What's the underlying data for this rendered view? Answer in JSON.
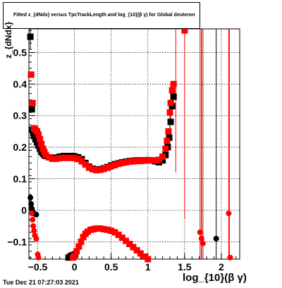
{
  "title": "Fitted  z_{dNdx} versus TpcTrackLength and log_{10}(β γ) for Global deuteron",
  "timestamp": "Tue Dec 21 07:27:03 2021",
  "xlabel": "log_{10}(β γ)",
  "ylabel": "z_{dNdx}",
  "colors": {
    "black": "#000000",
    "red": "#ff0000"
  },
  "chart_data": {
    "type": "scatter",
    "title": "Fitted  z_{dNdx} versus TpcTrackLength and log_{10}(β γ) for Global deuteron",
    "xlabel": "log_{10}(β γ)",
    "ylabel": "z_{dNdx}",
    "xlim": [
      -0.62,
      2.25
    ],
    "ylim": [
      -0.155,
      0.575
    ],
    "grid": true,
    "x_ticks": [
      -0.5,
      0,
      0.5,
      1,
      1.5,
      2
    ],
    "x_tick_labels": [
      "−0.5",
      "0",
      "0.5",
      "1",
      "1.5",
      "2"
    ],
    "y_ticks": [
      -0.1,
      0,
      0.1,
      0.2,
      0.3,
      0.4,
      0.5
    ],
    "y_tick_labels": [
      "−0.1",
      "0",
      "0.1",
      "0.2",
      "0.3",
      "0.4",
      "0.5"
    ],
    "series": [
      {
        "color": "#000000",
        "marker": "square",
        "points": [
          [
            -0.6,
            0.55
          ],
          [
            -0.59,
            0.43
          ],
          [
            -0.58,
            0.32
          ],
          [
            -0.575,
            0.255
          ],
          [
            -0.56,
            0.245
          ],
          [
            -0.55,
            0.235
          ],
          [
            -0.53,
            0.225
          ],
          [
            -0.51,
            0.215
          ],
          [
            -0.49,
            0.205
          ],
          [
            -0.47,
            0.195
          ],
          [
            -0.45,
            0.185
          ],
          [
            -0.43,
            0.18
          ],
          [
            -0.41,
            0.175
          ],
          [
            -0.39,
            0.172
          ],
          [
            -0.35,
            0.168
          ],
          [
            -0.3,
            0.166
          ],
          [
            -0.25,
            0.167
          ],
          [
            -0.2,
            0.17
          ],
          [
            -0.15,
            0.172
          ],
          [
            -0.1,
            0.172
          ],
          [
            -0.05,
            0.172
          ],
          [
            0,
            0.171
          ],
          [
            0.05,
            0.168
          ],
          [
            0.1,
            0.162
          ],
          [
            0.15,
            0.15
          ],
          [
            0.2,
            0.138
          ],
          [
            0.25,
            0.132
          ],
          [
            0.3,
            0.129
          ],
          [
            0.35,
            0.13
          ],
          [
            0.4,
            0.133
          ],
          [
            0.45,
            0.137
          ],
          [
            0.5,
            0.142
          ],
          [
            0.55,
            0.146
          ],
          [
            0.6,
            0.149
          ],
          [
            0.65,
            0.152
          ],
          [
            0.7,
            0.154
          ],
          [
            0.75,
            0.156
          ],
          [
            0.8,
            0.157
          ],
          [
            0.85,
            0.158
          ],
          [
            0.9,
            0.158
          ],
          [
            0.95,
            0.158
          ],
          [
            1.0,
            0.159
          ],
          [
            1.05,
            0.158
          ],
          [
            1.1,
            0.155
          ],
          [
            1.15,
            0.152
          ],
          [
            1.2,
            0.158
          ],
          [
            1.24,
            0.175
          ],
          [
            1.27,
            0.2
          ],
          [
            1.29,
            0.23
          ],
          [
            1.31,
            0.28
          ],
          [
            1.33,
            0.33
          ],
          [
            1.35,
            0.36
          ]
        ]
      },
      {
        "color": "#000000",
        "marker": "circle",
        "points": [
          [
            -0.6,
            0.04
          ],
          [
            -0.59,
            0.02
          ],
          [
            -0.58,
            0.005
          ],
          [
            -0.57,
            -0.005
          ],
          [
            -0.56,
            -0.01
          ],
          [
            -0.54,
            -0.012
          ],
          [
            -0.52,
            -0.014
          ],
          [
            1.93,
            -0.09
          ]
        ]
      },
      {
        "color": "#000000",
        "marker": "square",
        "points": [
          [
            -0.08,
            -0.15
          ],
          [
            -0.05,
            -0.145
          ],
          [
            -0.02,
            -0.142
          ],
          [
            0.01,
            -0.14
          ]
        ]
      },
      {
        "color": "#ff0000",
        "marker": "square",
        "points": [
          [
            -0.59,
            0.43
          ],
          [
            -0.57,
            0.34
          ],
          [
            -0.55,
            0.26
          ],
          [
            -0.53,
            0.255
          ],
          [
            -0.51,
            0.25
          ],
          [
            -0.49,
            0.24
          ],
          [
            -0.47,
            0.225
          ],
          [
            -0.45,
            0.21
          ],
          [
            -0.43,
            0.195
          ],
          [
            -0.41,
            0.185
          ],
          [
            -0.39,
            0.175
          ],
          [
            -0.35,
            0.168
          ],
          [
            -0.3,
            0.163
          ],
          [
            -0.25,
            0.163
          ],
          [
            -0.2,
            0.165
          ],
          [
            -0.15,
            0.166
          ],
          [
            -0.1,
            0.166
          ],
          [
            -0.05,
            0.166
          ],
          [
            0,
            0.165
          ],
          [
            0.05,
            0.162
          ],
          [
            0.1,
            0.155
          ],
          [
            0.15,
            0.145
          ],
          [
            0.2,
            0.135
          ],
          [
            0.25,
            0.13
          ],
          [
            0.3,
            0.127
          ],
          [
            0.35,
            0.128
          ],
          [
            0.4,
            0.131
          ],
          [
            0.45,
            0.135
          ],
          [
            0.5,
            0.139
          ],
          [
            0.55,
            0.143
          ],
          [
            0.6,
            0.147
          ],
          [
            0.65,
            0.15
          ],
          [
            0.7,
            0.152
          ],
          [
            0.75,
            0.154
          ],
          [
            0.8,
            0.155
          ],
          [
            0.85,
            0.156
          ],
          [
            0.9,
            0.156
          ],
          [
            0.95,
            0.157
          ],
          [
            1.0,
            0.158
          ],
          [
            1.05,
            0.158
          ],
          [
            1.1,
            0.158
          ],
          [
            1.15,
            0.16
          ],
          [
            1.2,
            0.17
          ],
          [
            1.24,
            0.195
          ],
          [
            1.26,
            0.22
          ],
          [
            1.28,
            0.25
          ],
          [
            1.3,
            0.31
          ],
          [
            1.31,
            0.34
          ],
          [
            1.33,
            0.38
          ],
          [
            1.35,
            0.4
          ],
          [
            1.5,
            0.57
          ]
        ]
      },
      {
        "color": "#ff0000",
        "marker": "circle",
        "points": [
          [
            -0.58,
            -0.01
          ],
          [
            -0.57,
            -0.03
          ],
          [
            -0.56,
            -0.05
          ],
          [
            -0.55,
            -0.065
          ],
          [
            -0.54,
            -0.08
          ],
          [
            -0.52,
            -0.09
          ],
          [
            -0.5,
            -0.14
          ],
          [
            -0.49,
            -0.15
          ],
          [
            1.71,
            -0.07
          ],
          [
            1.73,
            -0.09
          ],
          [
            1.75,
            -0.105
          ],
          [
            2.1,
            -0.01
          ],
          [
            2.12,
            -0.15
          ]
        ]
      },
      {
        "color": "#ff0000",
        "marker": "square",
        "points": [
          [
            -0.02,
            -0.15
          ],
          [
            0,
            -0.145
          ],
          [
            0.03,
            -0.13
          ],
          [
            0.06,
            -0.115
          ],
          [
            0.09,
            -0.1
          ],
          [
            0.12,
            -0.085
          ],
          [
            0.15,
            -0.075
          ],
          [
            0.18,
            -0.068
          ],
          [
            0.22,
            -0.062
          ],
          [
            0.26,
            -0.06
          ],
          [
            0.3,
            -0.058
          ],
          [
            0.35,
            -0.058
          ],
          [
            0.4,
            -0.06
          ],
          [
            0.45,
            -0.062
          ],
          [
            0.5,
            -0.065
          ],
          [
            0.55,
            -0.07
          ],
          [
            0.6,
            -0.078
          ],
          [
            0.65,
            -0.087
          ],
          [
            0.7,
            -0.097
          ],
          [
            0.75,
            -0.107
          ],
          [
            0.8,
            -0.117
          ],
          [
            0.85,
            -0.127
          ],
          [
            0.9,
            -0.137
          ],
          [
            0.95,
            -0.147
          ],
          [
            1.0,
            -0.155
          ]
        ]
      }
    ],
    "error_bars": [
      {
        "color": "#000000",
        "x": -0.6,
        "low": 0.51,
        "high": 0.575
      },
      {
        "color": "#000000",
        "x": 1.3,
        "low": 0.2,
        "high": 0.32
      },
      {
        "color": "#000000",
        "x": 1.35,
        "low": 0.32,
        "high": 0.4
      },
      {
        "color": "#000000",
        "x": 1.73,
        "low": -0.155,
        "high": 0.575
      },
      {
        "color": "#000000",
        "x": 1.93,
        "low": -0.155,
        "high": 0.575
      },
      {
        "color": "#ff0000",
        "x": 1.5,
        "low": -0.03,
        "high": 0.575
      },
      {
        "color": "#ff0000",
        "x": 1.38,
        "low": 0.12,
        "high": 0.575
      },
      {
        "color": "#ff0000",
        "x": 1.71,
        "low": -0.155,
        "high": 0.575
      },
      {
        "color": "#ff0000",
        "x": 1.75,
        "low": -0.155,
        "high": 0.575
      },
      {
        "color": "#ff0000",
        "x": 2.1,
        "low": -0.155,
        "high": 0.575
      },
      {
        "color": "#ff0000",
        "x": 2.11,
        "low": -0.155,
        "high": 0.575
      },
      {
        "color": "#ff0000",
        "x": 1.31,
        "low": 0.28,
        "high": 0.4
      },
      {
        "color": "#ff0000",
        "x": 1.24,
        "low": 0.17,
        "high": 0.22
      }
    ]
  }
}
